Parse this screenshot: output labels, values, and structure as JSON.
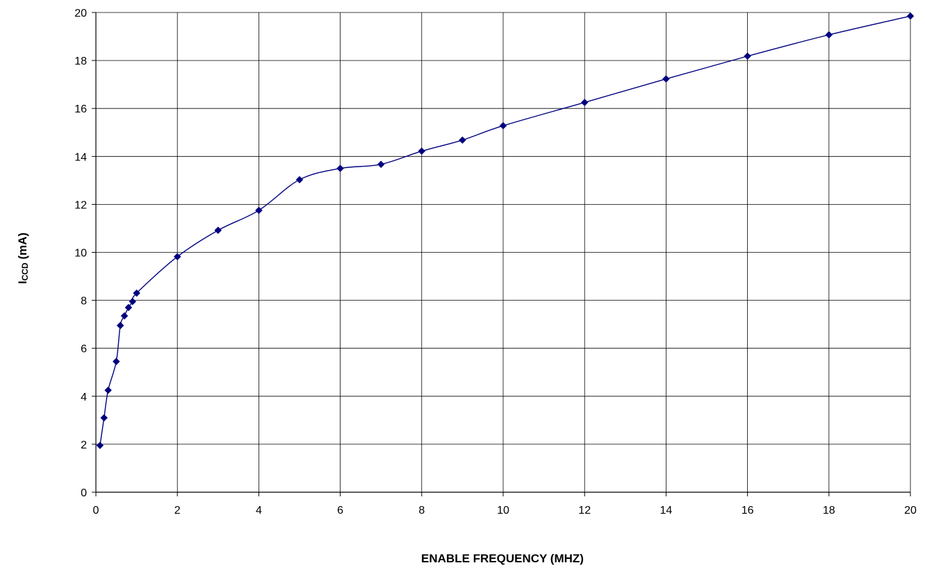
{
  "chart_data": {
    "type": "line",
    "title": "",
    "xlabel": "ENABLE FREQUENCY (MHZ)",
    "ylabel": {
      "main": "I",
      "subscript": "CCD",
      "suffix": " (mA)"
    },
    "xlim": [
      0,
      20
    ],
    "ylim": [
      0,
      20
    ],
    "xticks": [
      0,
      2,
      4,
      6,
      8,
      10,
      12,
      14,
      16,
      18,
      20
    ],
    "yticks": [
      0,
      2,
      4,
      6,
      8,
      10,
      12,
      14,
      16,
      18,
      20
    ],
    "grid": true,
    "legend": "none",
    "series": [
      {
        "color": "#000080",
        "marker": "diamond",
        "x": [
          0.1,
          0.2,
          0.3,
          0.5,
          0.6,
          0.7,
          0.8,
          0.9,
          1,
          2,
          3,
          4,
          5,
          6,
          7,
          8,
          9,
          10,
          12,
          14,
          16,
          18,
          20
        ],
        "y": [
          1.95,
          3.1,
          4.25,
          5.45,
          6.95,
          7.35,
          7.7,
          7.95,
          8.3,
          9.82,
          10.92,
          11.75,
          13.03,
          13.5,
          13.67,
          14.22,
          14.68,
          15.28,
          16.25,
          17.23,
          18.18,
          19.07,
          19.85
        ]
      }
    ]
  }
}
